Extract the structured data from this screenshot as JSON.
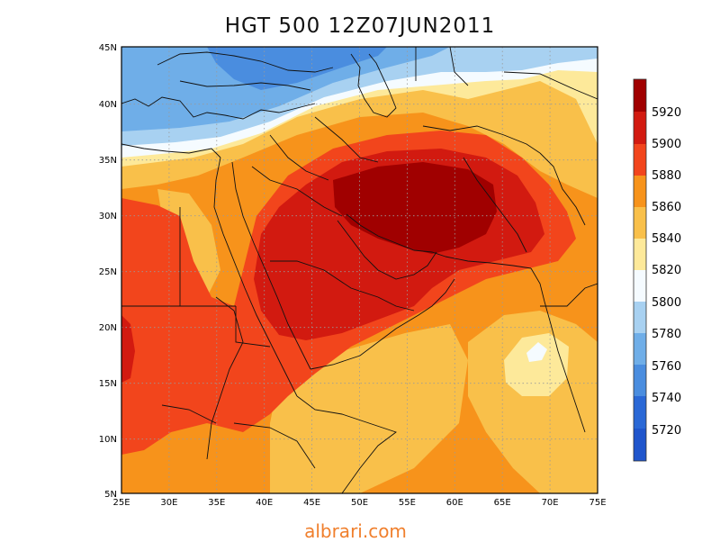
{
  "title": "HGT 500 12Z07JUN2011",
  "watermark": "albrari.com",
  "lat_ticks": [
    "45N",
    "40N",
    "35N",
    "30N",
    "25N",
    "20N",
    "15N",
    "10N",
    "5N"
  ],
  "lon_ticks": [
    "25E",
    "30E",
    "35E",
    "40E",
    "45E",
    "50E",
    "55E",
    "60E",
    "65E",
    "70E",
    "75E"
  ],
  "colorbar": {
    "labels": [
      "5920",
      "5900",
      "5880",
      "5860",
      "5840",
      "5820",
      "5800",
      "5780",
      "5760",
      "5740",
      "5720"
    ],
    "colors": [
      "#a00000",
      "#d21a10",
      "#f2451c",
      "#f7931b",
      "#f9c04a",
      "#fde99a",
      "#f5fbff",
      "#a8d1f1",
      "#6faee8",
      "#4a8ddf",
      "#2a68d6"
    ]
  }
}
